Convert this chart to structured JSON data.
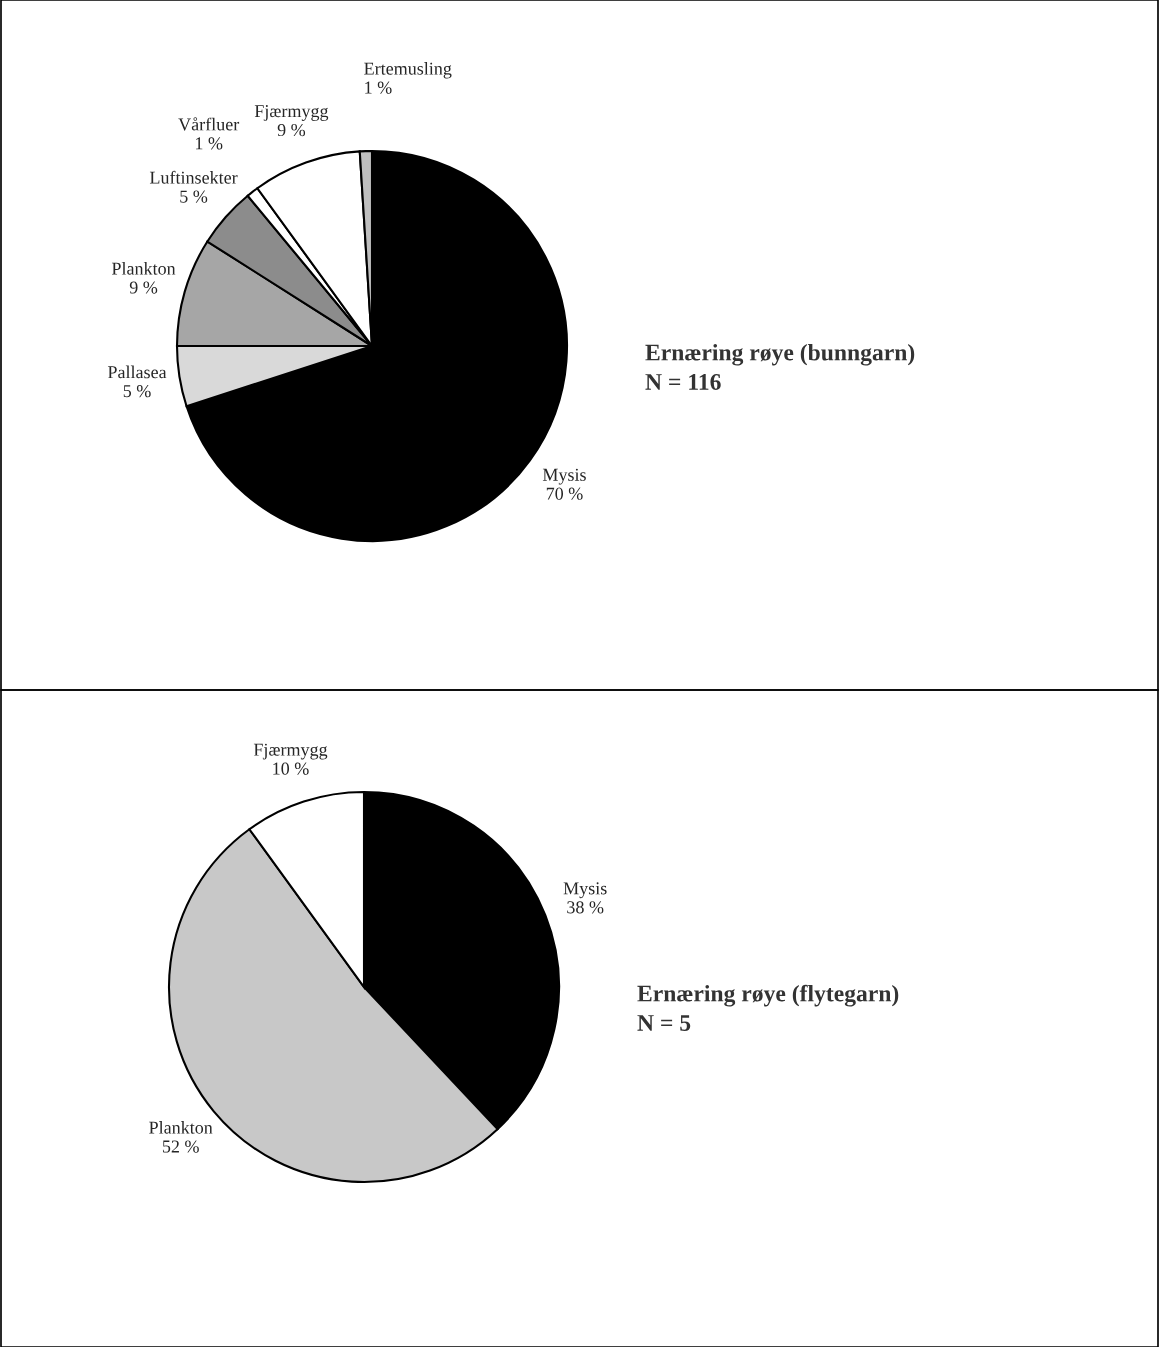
{
  "chart_data": [
    {
      "type": "pie",
      "title": "Ernæring røye (bunngarn)",
      "subtitle": "N = 116",
      "categories": [
        "Mysis",
        "Pallasea",
        "Plankton",
        "Luftinsekter",
        "Vårfluer",
        "Fjærmygg",
        "Ertemusling"
      ],
      "values": [
        70,
        5,
        9,
        5,
        1,
        9,
        1
      ],
      "value_labels": [
        "70 %",
        "5 %",
        "9 %",
        "5 %",
        "1 %",
        "9 %",
        "1 %"
      ],
      "colors": [
        "#000000",
        "#d9d9d9",
        "#a6a6a6",
        "#8c8c8c",
        "#ffffff",
        "#ffffff",
        "#bfbfbf"
      ]
    },
    {
      "type": "pie",
      "title": "Ernæring røye (flytegarn)",
      "subtitle": "N = 5",
      "categories": [
        "Mysis",
        "Plankton",
        "Fjærmygg"
      ],
      "values": [
        38,
        52,
        10
      ],
      "value_labels": [
        "38 %",
        "52 %",
        "10 %"
      ],
      "colors": [
        "#000000",
        "#c8c8c8",
        "#ffffff"
      ]
    }
  ]
}
